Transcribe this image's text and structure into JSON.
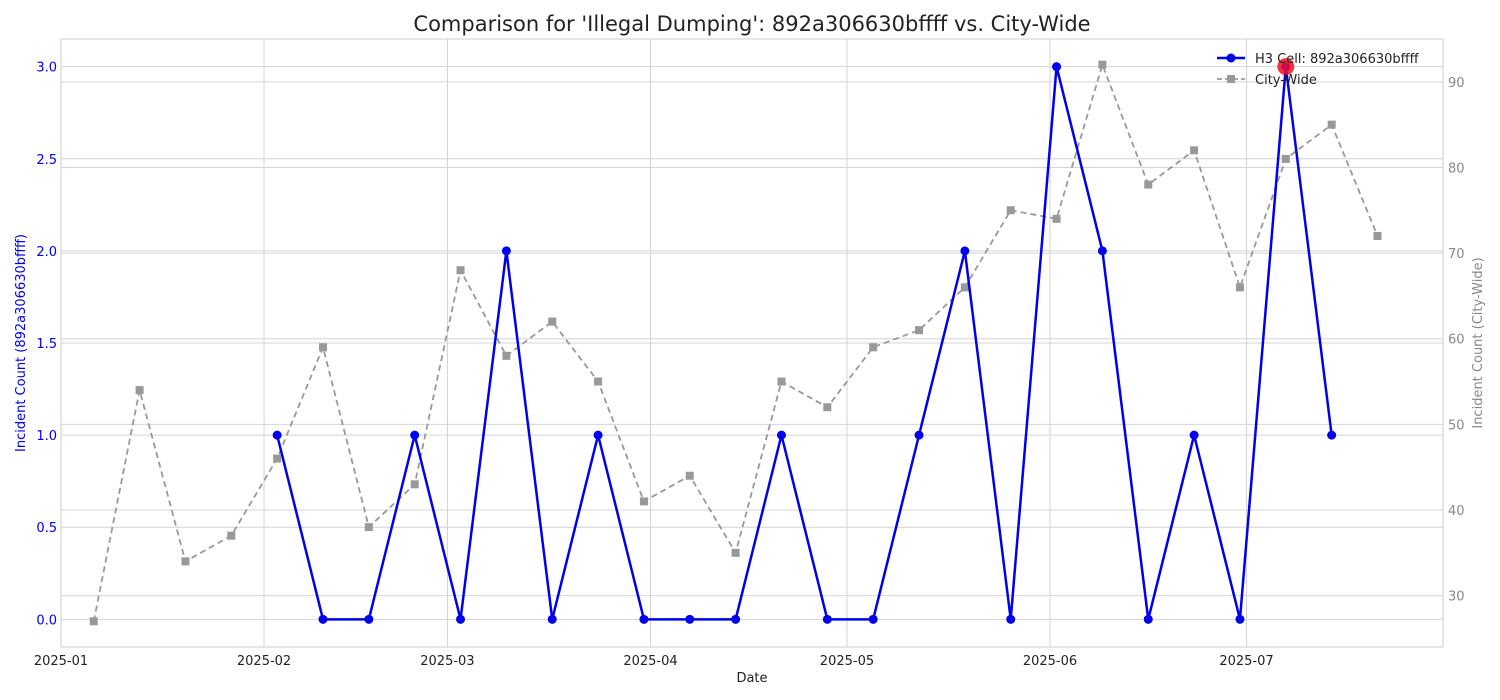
{
  "chart_data": {
    "type": "line",
    "title": "Comparison for 'Illegal Dumping': 892a306630bffff vs. City-Wide",
    "xlabel": "Date",
    "ylabel_left": "Incident Count (892a306630bffff)",
    "ylabel_right": "Incident Count (City-Wide)",
    "xlim": [
      "2025-01-01",
      "2025-07-31"
    ],
    "ylim_left": [
      -0.15,
      3.15
    ],
    "ylim_right": [
      24,
      95
    ],
    "grid": true,
    "legend_position": "top-right",
    "x_ticks": [
      "2025-01",
      "2025-02",
      "2025-03",
      "2025-04",
      "2025-05",
      "2025-06",
      "2025-07"
    ],
    "y_ticks_left": [
      "0.0",
      "0.5",
      "1.0",
      "1.5",
      "2.0",
      "2.5",
      "3.0"
    ],
    "y_ticks_right": [
      "30",
      "40",
      "50",
      "60",
      "70",
      "80",
      "90"
    ],
    "series": [
      {
        "name": "H3 Cell: 892a306630bffff",
        "axis": "left",
        "color": "#0000ee",
        "style": "solid",
        "marker": "circle",
        "x": [
          "2025-02-03",
          "2025-02-10",
          "2025-02-17",
          "2025-02-24",
          "2025-03-03",
          "2025-03-10",
          "2025-03-17",
          "2025-03-24",
          "2025-03-31",
          "2025-04-07",
          "2025-04-14",
          "2025-04-21",
          "2025-04-28",
          "2025-05-05",
          "2025-05-12",
          "2025-05-19",
          "2025-05-26",
          "2025-06-02",
          "2025-06-09",
          "2025-06-16",
          "2025-06-23",
          "2025-06-30",
          "2025-07-07",
          "2025-07-14"
        ],
        "values": [
          1,
          0,
          0,
          1,
          0,
          2,
          0,
          1,
          0,
          0,
          0,
          1,
          0,
          0,
          1,
          2,
          0,
          3,
          2,
          0,
          1,
          0,
          3,
          1
        ]
      },
      {
        "name": "City-Wide",
        "axis": "right",
        "color": "#999999",
        "style": "dashed",
        "marker": "square",
        "x": [
          "2025-01-06",
          "2025-01-13",
          "2025-01-20",
          "2025-01-27",
          "2025-02-03",
          "2025-02-10",
          "2025-02-17",
          "2025-02-24",
          "2025-03-03",
          "2025-03-10",
          "2025-03-17",
          "2025-03-24",
          "2025-03-31",
          "2025-04-07",
          "2025-04-14",
          "2025-04-21",
          "2025-04-28",
          "2025-05-05",
          "2025-05-12",
          "2025-05-19",
          "2025-05-26",
          "2025-06-02",
          "2025-06-09",
          "2025-06-16",
          "2025-06-23",
          "2025-06-30",
          "2025-07-07",
          "2025-07-14",
          "2025-07-21"
        ],
        "values": [
          27,
          54,
          34,
          37,
          46,
          59,
          38,
          43,
          68,
          58,
          62,
          55,
          41,
          44,
          35,
          55,
          52,
          59,
          61,
          66,
          75,
          74,
          92,
          78,
          82,
          66,
          81,
          85,
          72
        ]
      }
    ],
    "highlight": {
      "x": "2025-07-07",
      "value": 3,
      "axis": "left",
      "color": "#ee1122"
    }
  }
}
